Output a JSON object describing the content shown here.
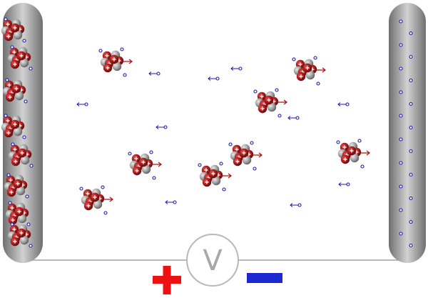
{
  "voltmeter": {
    "label": "V"
  },
  "colors": {
    "electrode_dark": "#6f6f6f",
    "electrode_light": "#d2d2d2",
    "nucleus_red": "#a01818",
    "nucleus_gray": "#9a9a9a",
    "electron_blue": "#1a1ab0",
    "arrow_red": "#b01010",
    "wire": "#b8b8b8",
    "positive": "#ee1111",
    "negative": "#1a2ad0"
  },
  "icons": {
    "positive_terminal": "plus-sign-icon",
    "negative_terminal": "minus-sign-icon",
    "voltmeter": "voltmeter-icon"
  }
}
